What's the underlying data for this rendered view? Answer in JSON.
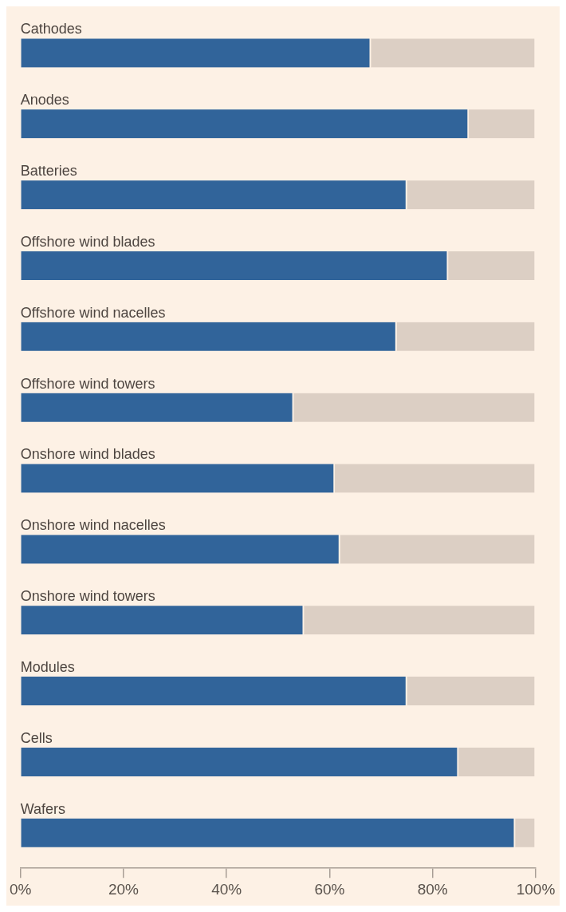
{
  "chart_data": {
    "type": "bar",
    "orientation": "horizontal",
    "stacked": true,
    "categories": [
      "Cathodes",
      "Anodes",
      "Batteries",
      "Offshore wind blades",
      "Offshore wind nacelles",
      "Offshore wind towers",
      "Onshore wind blades",
      "Onshore wind nacelles",
      "Onshore wind towers",
      "Modules",
      "Cells",
      "Wafers"
    ],
    "series": [
      {
        "color": "#31649a",
        "values": [
          68,
          87,
          75,
          83,
          73,
          53,
          61,
          62,
          55,
          75,
          85,
          96
        ]
      },
      {
        "color": "#dccfc4",
        "values": [
          32,
          13,
          25,
          17,
          27,
          47,
          39,
          38,
          45,
          25,
          15,
          4
        ]
      }
    ],
    "xlim": [
      0,
      100
    ],
    "xticks": [
      {
        "value": 0,
        "label": "0%"
      },
      {
        "value": 20,
        "label": "20%"
      },
      {
        "value": 40,
        "label": "40%"
      },
      {
        "value": 60,
        "label": "60%"
      },
      {
        "value": 80,
        "label": "80%"
      },
      {
        "value": 100,
        "label": "100%"
      }
    ],
    "grid": false,
    "legend": false
  }
}
